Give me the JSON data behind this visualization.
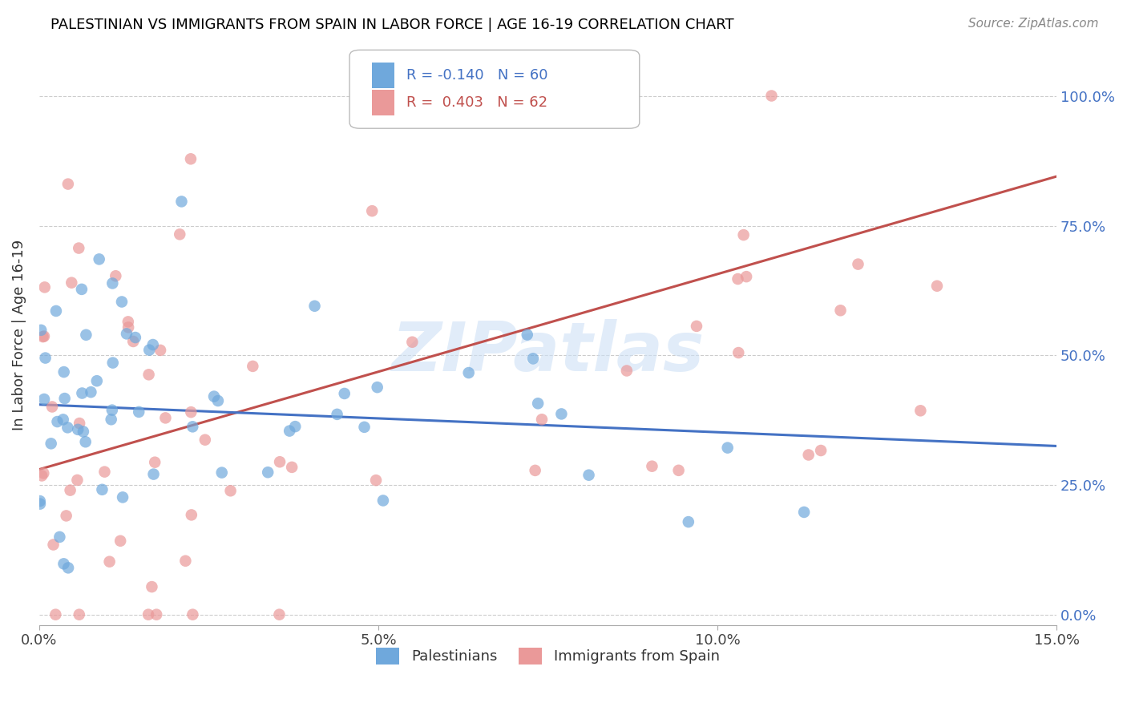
{
  "title": "PALESTINIAN VS IMMIGRANTS FROM SPAIN IN LABOR FORCE | AGE 16-19 CORRELATION CHART",
  "source": "Source: ZipAtlas.com",
  "ylabel": "In Labor Force | Age 16-19",
  "xlim": [
    0.0,
    0.15
  ],
  "ylim": [
    -0.02,
    1.1
  ],
  "yticks": [
    0.0,
    0.25,
    0.5,
    0.75,
    1.0
  ],
  "ytick_labels": [
    "0.0%",
    "25.0%",
    "50.0%",
    "75.0%",
    "100.0%"
  ],
  "xticks": [
    0.0,
    0.05,
    0.1,
    0.15
  ],
  "xtick_labels": [
    "0.0%",
    "5.0%",
    "10.0%",
    "15.0%"
  ],
  "blue_color": "#6fa8dc",
  "pink_color": "#ea9999",
  "blue_line_color": "#4472c4",
  "pink_line_color": "#c0504d",
  "blue_R": -0.14,
  "blue_N": 60,
  "pink_R": 0.403,
  "pink_N": 62,
  "legend_label_blue": "Palestinians",
  "legend_label_pink": "Immigrants from Spain",
  "watermark_text": "ZIPatlas",
  "background_color": "#ffffff",
  "grid_color": "#cccccc",
  "title_color": "#000000",
  "source_color": "#888888",
  "right_axis_color": "#4472c4",
  "blue_line_y0": 0.405,
  "blue_line_y1": 0.325,
  "pink_line_y0": 0.28,
  "pink_line_y1": 0.845
}
